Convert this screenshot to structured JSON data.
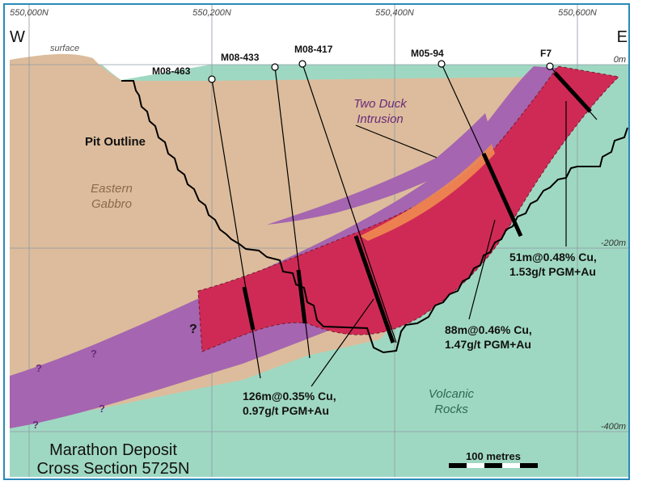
{
  "axis": {
    "eastings": [
      "550,000N",
      "550,200N",
      "550,400N",
      "550,600N"
    ],
    "depths": [
      "0m",
      "-200m",
      "-400m"
    ],
    "west": "W",
    "east": "E",
    "surface": "surface"
  },
  "units": {
    "pit_outline": "Pit Outline",
    "eastern_gabbro": [
      "Eastern",
      "Gabbro"
    ],
    "two_duck": [
      "Two Duck",
      "Intrusion"
    ],
    "volcanic": [
      "Volcanic",
      "Rocks"
    ]
  },
  "holes": [
    "M08-463",
    "M08-433",
    "M08-417",
    "M05-94",
    "F7"
  ],
  "intercepts": {
    "i1": [
      "126m@0.35% Cu,",
      "0.97g/t PGM+Au"
    ],
    "i2": [
      "88m@0.46% Cu,",
      "1.47g/t PGM+Au"
    ],
    "i3": [
      "51m@0.48% Cu,",
      "1.53g/t PGM+Au"
    ]
  },
  "question": "?",
  "title": [
    "Marathon Deposit",
    "Cross Section 5725N"
  ],
  "scale": "100 metres",
  "colors": {
    "gabbro": "#dcbc9c",
    "volcanic": "#9fd8c2",
    "intrusion": "#a565b0",
    "ore": "#cf2a55",
    "frame": "#2a8ab8"
  }
}
